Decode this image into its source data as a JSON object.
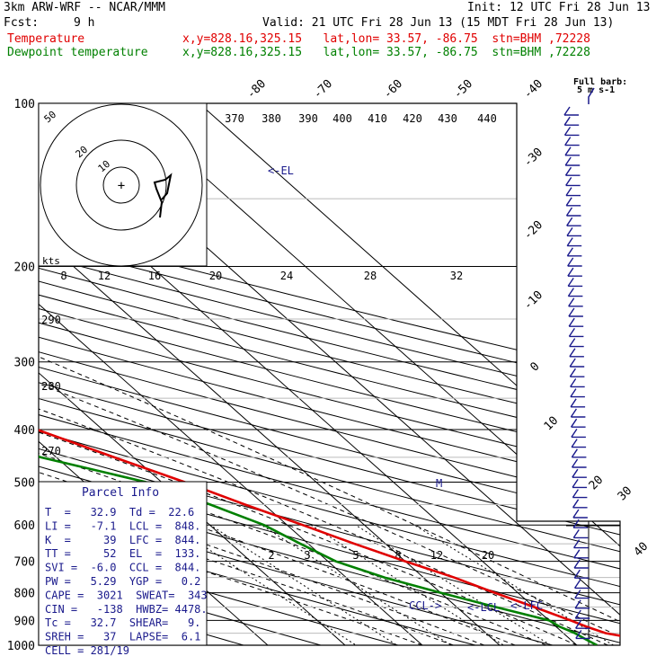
{
  "header": {
    "model": "3km ARW-WRF -- NCAR/MMM",
    "init": "Init: 12 UTC Fri 28 Jun 13",
    "fcst_label": "Fcst:",
    "fcst_value": "9 h",
    "valid": "Valid: 21 UTC Fri 28 Jun 13 (15 MDT Fri 28 Jun 13)",
    "temp_label": "Temperature",
    "temp_info": "x,y=828.16,325.15   lat,lon= 33.57, -86.75  stn=BHM ,72228",
    "dew_label": "Dewpoint temperature",
    "dew_info": "x,y=828.16,325.15   lat,lon= 33.57, -86.75  stn=BHM ,72228"
  },
  "colors": {
    "temperature": "#e00000",
    "dewpoint": "#008000",
    "text_blue": "#1a1a8c",
    "guide_gray": "#999999"
  },
  "hodograph": {
    "rings": [
      "10",
      "20",
      "50"
    ],
    "center_mark": "+"
  },
  "parcel": {
    "title": "Parcel Info",
    "rows": [
      "T  =   32.9  Td =  22.6",
      "LI =   -7.1  LCL =  848.",
      "K  =     39  LFC =  844.",
      "TT =     52  EL  =  133.",
      "SVI =  -6.0  CCL =  844.",
      "PW =   5.29  YGP =   0.2",
      "CAPE =  3021  SWEAT=  343",
      "CIN =   -138  HWBZ= 4478.",
      "Tc =   32.7  SHEAR=   9.",
      "SREH =   37  LAPSE=  6.1",
      "CELL = 281/19"
    ]
  },
  "barb_legend": {
    "line1": "Full barb:",
    "line2": "5 m s-1"
  },
  "chart_data": {
    "type": "line",
    "title": "",
    "pressure_levels": [
      "100",
      "200",
      "300",
      "400",
      "500",
      "600",
      "700",
      "800",
      "900",
      "1000"
    ],
    "temperature_ticks": [
      "-80",
      "-70",
      "-60",
      "-50",
      "-40",
      "-30",
      "-20",
      "-10",
      "0",
      "10",
      "20",
      "30",
      "40"
    ],
    "theta_ticks": [
      "370",
      "380",
      "390",
      "400",
      "410",
      "420",
      "430",
      "440"
    ],
    "theta_left_ticks": [
      "290",
      "280",
      "270"
    ],
    "mixing_ratio_ticks": [
      "2",
      "3",
      "5",
      "8",
      "12",
      "20"
    ],
    "wind_speed_axis_label": "kts",
    "wind_speed_ticks": [
      "8",
      "12",
      "16",
      "20",
      "24",
      "28",
      "32"
    ],
    "annotations": {
      "el": "<-EL",
      "lcl": "<-LCL",
      "lfc": "<-LFC",
      "ccl": "CCL->",
      "mark": "M"
    },
    "series": [
      {
        "name": "Temperature",
        "points": [
          [
            1000,
            32.9
          ],
          [
            975,
            29.0
          ],
          [
            950,
            25.5
          ],
          [
            925,
            24.0
          ],
          [
            900,
            22.8
          ],
          [
            850,
            20.0
          ],
          [
            800,
            17.0
          ],
          [
            750,
            14.0
          ],
          [
            700,
            10.0
          ],
          [
            650,
            6.0
          ],
          [
            600,
            2.0
          ],
          [
            550,
            -2.5
          ],
          [
            500,
            -7.0
          ],
          [
            450,
            -12.5
          ],
          [
            400,
            -18.5
          ],
          [
            350,
            -25.5
          ],
          [
            300,
            -33.5
          ],
          [
            275,
            -38.0
          ],
          [
            250,
            -42.5
          ],
          [
            225,
            -47.5
          ],
          [
            200,
            -53.0
          ],
          [
            175,
            -58.5
          ],
          [
            150,
            -66.5
          ],
          [
            140,
            -70.0
          ],
          [
            125,
            -71.0
          ],
          [
            110,
            -70.0
          ],
          [
            100,
            -68.0
          ]
        ]
      },
      {
        "name": "Dewpoint temperature",
        "points": [
          [
            1000,
            22.6
          ],
          [
            975,
            22.0
          ],
          [
            950,
            21.5
          ],
          [
            925,
            20.5
          ],
          [
            900,
            20.0
          ],
          [
            850,
            15.0
          ],
          [
            800,
            10.0
          ],
          [
            750,
            5.0
          ],
          [
            700,
            1.0
          ],
          [
            650,
            -1.0
          ],
          [
            600,
            -3.0
          ],
          [
            550,
            -7.0
          ],
          [
            500,
            -12.0
          ],
          [
            450,
            -22.0
          ],
          [
            400,
            -29.0
          ],
          [
            350,
            -37.0
          ],
          [
            300,
            -45.0
          ],
          [
            275,
            -44.0
          ],
          [
            250,
            -40.0
          ],
          [
            225,
            -45.0
          ],
          [
            200,
            -53.0
          ],
          [
            175,
            -60.0
          ],
          [
            150,
            -68.0
          ],
          [
            140,
            -74.0
          ],
          [
            125,
            -79.0
          ],
          [
            110,
            -79.5
          ],
          [
            100,
            -80.0
          ]
        ]
      }
    ],
    "wind_barbs": "15 kt westerly-northwesterly through the column"
  }
}
